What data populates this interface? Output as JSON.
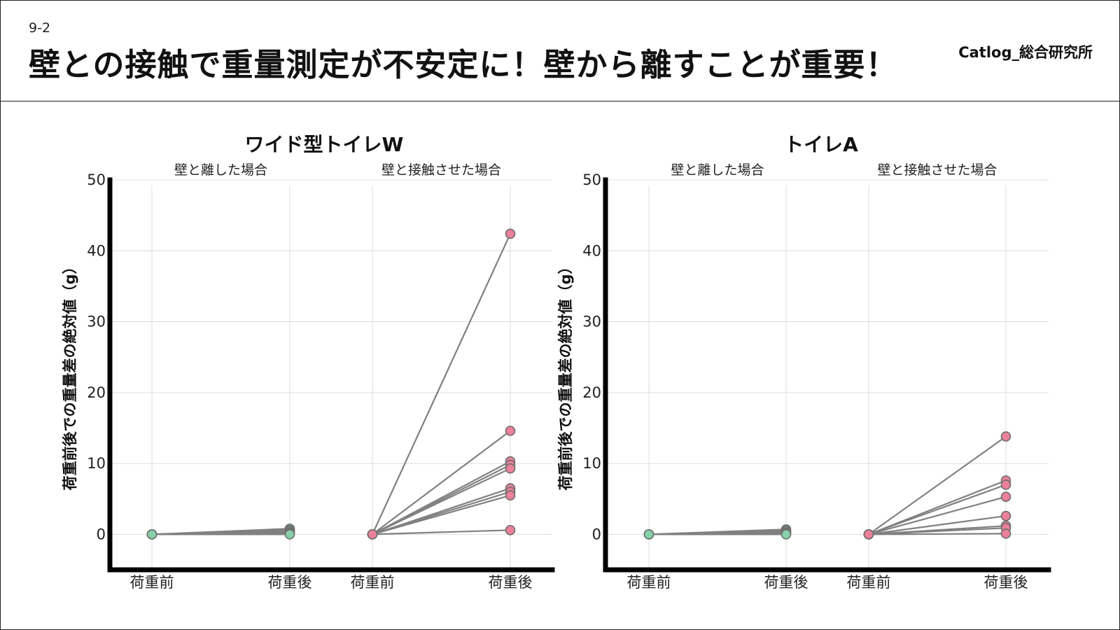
{
  "slide": {
    "number": "9-2",
    "title": "壁との接触で重量測定が不安定に！壁から離すことが重要！",
    "brand": "Catlog_総合研究所"
  },
  "colors": {
    "separated": "#86d1a7",
    "contact_before": "#ea8099",
    "contact_after": "#ea8099",
    "line": "#808080"
  },
  "chart_data": [
    {
      "type": "line",
      "title": "ワイド型トイレW",
      "ylabel": "荷重前後での重量差の絶対値（g）",
      "ylim": [
        -5,
        50
      ],
      "yticks": [
        0,
        10,
        20,
        30,
        40,
        50
      ],
      "grid": true,
      "facets": [
        {
          "label": "壁と離した場合",
          "x": [
            "荷重前",
            "荷重後"
          ],
          "series": [
            {
              "values": [
                0,
                0.8
              ]
            },
            {
              "values": [
                0,
                0.6
              ]
            },
            {
              "values": [
                0,
                0.5
              ]
            },
            {
              "values": [
                0,
                0.3
              ]
            },
            {
              "values": [
                0,
                0.2
              ]
            },
            {
              "values": [
                0,
                0.1
              ]
            },
            {
              "values": [
                0,
                0.0
              ]
            }
          ]
        },
        {
          "label": "壁と接触させた場合",
          "x": [
            "荷重前",
            "荷重後"
          ],
          "series": [
            {
              "values": [
                0,
                42.4
              ]
            },
            {
              "values": [
                0,
                14.6
              ]
            },
            {
              "values": [
                0,
                10.3
              ]
            },
            {
              "values": [
                0,
                9.8
              ]
            },
            {
              "values": [
                0,
                9.3
              ]
            },
            {
              "values": [
                0,
                6.5
              ]
            },
            {
              "values": [
                0,
                6.0
              ]
            },
            {
              "values": [
                0,
                5.5
              ]
            },
            {
              "values": [
                0,
                0.6
              ]
            }
          ]
        }
      ]
    },
    {
      "type": "line",
      "title": "トイレA",
      "ylabel": "荷重前後での重量差の絶対値（g）",
      "ylim": [
        -5,
        50
      ],
      "yticks": [
        0,
        10,
        20,
        30,
        40,
        50
      ],
      "grid": true,
      "facets": [
        {
          "label": "壁と離した場合",
          "x": [
            "荷重前",
            "荷重後"
          ],
          "series": [
            {
              "values": [
                0,
                0.7
              ]
            },
            {
              "values": [
                0,
                0.5
              ]
            },
            {
              "values": [
                0,
                0.3
              ]
            },
            {
              "values": [
                0,
                0.2
              ]
            },
            {
              "values": [
                0,
                0.1
              ]
            },
            {
              "values": [
                0,
                0.0
              ]
            }
          ]
        },
        {
          "label": "壁と接触させた場合",
          "x": [
            "荷重前",
            "荷重後"
          ],
          "series": [
            {
              "values": [
                0,
                13.8
              ]
            },
            {
              "values": [
                0,
                7.6
              ]
            },
            {
              "values": [
                0,
                7.0
              ]
            },
            {
              "values": [
                0,
                5.3
              ]
            },
            {
              "values": [
                0,
                2.6
              ]
            },
            {
              "values": [
                0,
                1.2
              ]
            },
            {
              "values": [
                0,
                0.9
              ]
            },
            {
              "values": [
                0,
                0.1
              ]
            }
          ]
        }
      ]
    }
  ]
}
